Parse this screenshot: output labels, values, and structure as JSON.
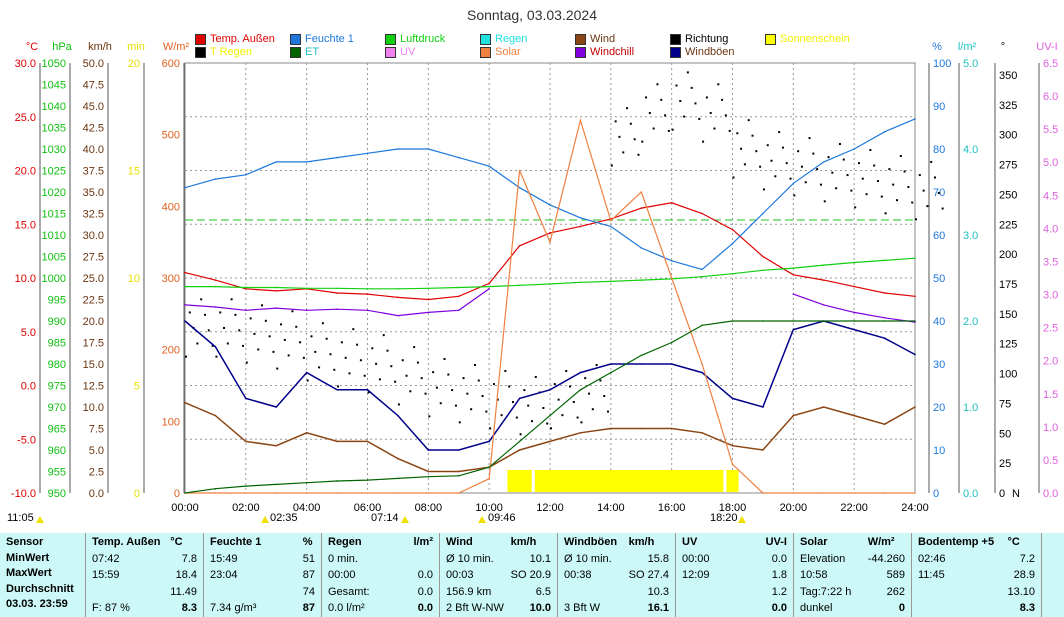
{
  "title": "Sonntag, 03.03.2024",
  "legend": [
    {
      "label": "Temp. Außen",
      "color": "#e00000",
      "text": "#e00000"
    },
    {
      "label": "Feuchte 1",
      "color": "#1e78dc",
      "text": "#1e78dc"
    },
    {
      "label": "Luftdruck",
      "color": "#10d010",
      "text": "#10d010"
    },
    {
      "label": "Regen",
      "color": "#20e0e0",
      "text": "#20e0e0"
    },
    {
      "label": "Wind",
      "color": "#8b4513",
      "text": "#6b3510"
    },
    {
      "label": "Richtung",
      "color": "#000000",
      "text": "#000000"
    },
    {
      "label": "Sonnenschein",
      "color": "#ffff00",
      "text": "#f0f000"
    },
    {
      "label": "T Regen",
      "color": "#000000",
      "text": "#f0f000"
    },
    {
      "label": "ET",
      "color": "#006400",
      "text": "#20c0c0"
    },
    {
      "label": "UV",
      "color": "#f080f0",
      "text": "#f080f0"
    },
    {
      "label": "Solar",
      "color": "#f08040",
      "text": "#f08040"
    },
    {
      "label": "Windchill",
      "color": "#8000e0",
      "text": "#c00000"
    },
    {
      "label": "Windböen",
      "color": "#00008b",
      "text": "#6b3510"
    }
  ],
  "axes": {
    "temp": {
      "unit": "°C",
      "color": "#e00000",
      "ticks": [
        "30.0",
        "25.0",
        "20.0",
        "15.0",
        "10.0",
        "5.0",
        "0.0",
        "-5.0",
        "-10.0"
      ]
    },
    "press": {
      "unit": "hPa",
      "color": "#10c010",
      "ticks": [
        "1050",
        "1045",
        "1040",
        "1035",
        "1030",
        "1025",
        "1020",
        "1015",
        "1010",
        "1005",
        "1000",
        "995",
        "990",
        "985",
        "980",
        "975",
        "970",
        "965",
        "960",
        "955",
        "950"
      ]
    },
    "wind": {
      "unit": "km/h",
      "color": "#6b3510",
      "ticks": [
        "50.0",
        "47.5",
        "45.0",
        "42.5",
        "40.0",
        "37.5",
        "35.0",
        "32.5",
        "30.0",
        "27.5",
        "25.0",
        "22.5",
        "20.0",
        "17.5",
        "15.0",
        "12.5",
        "10.0",
        "7.5",
        "5.0",
        "2.5",
        "0.0"
      ]
    },
    "min": {
      "unit": "min",
      "color": "#e8e000",
      "ticks": [
        "20",
        "15",
        "10",
        "5",
        "0"
      ]
    },
    "solar": {
      "unit": "W/m²",
      "color": "#e06020",
      "ticks": [
        "600",
        "500",
        "400",
        "300",
        "200",
        "100",
        "0"
      ]
    },
    "hum": {
      "unit": "%",
      "color": "#1e78dc",
      "ticks": [
        "100",
        "90",
        "80",
        "70",
        "60",
        "50",
        "40",
        "30",
        "20",
        "10",
        "0"
      ]
    },
    "rain": {
      "unit": "l/m²",
      "color": "#20c0c0",
      "ticks": [
        "5.0",
        "4.0",
        "3.0",
        "2.0",
        "1.0",
        "0.0"
      ]
    },
    "dir": {
      "unit": "°",
      "color": "#000",
      "ticks": [
        "350",
        "325",
        "300",
        "275",
        "250",
        "225",
        "200",
        "175",
        "150",
        "125",
        "100",
        "75",
        "50",
        "25",
        "0"
      ],
      "zero_label": "N"
    },
    "uv": {
      "unit": "UV-I",
      "color": "#e060e0",
      "ticks": [
        "6.5",
        "6.0",
        "5.5",
        "5.0",
        "4.5",
        "4.0",
        "3.5",
        "3.0",
        "2.5",
        "2.0",
        "1.5",
        "1.0",
        "0.5",
        "0.0"
      ]
    }
  },
  "markers": {
    "left": "11:05",
    "moonset": "02:35",
    "sunrise": "07:14",
    "moonrise": "09:46",
    "sunset": "18:20"
  },
  "chart_data": {
    "type": "line",
    "x_label_ticks": [
      "00:00",
      "02:00",
      "04:00",
      "06:00",
      "08:00",
      "10:00",
      "12:00",
      "14:00",
      "16:00",
      "18:00",
      "20:00",
      "22:00",
      "24:00"
    ],
    "hours": [
      0,
      1,
      2,
      3,
      4,
      5,
      6,
      7,
      8,
      9,
      10,
      11,
      12,
      13,
      14,
      15,
      16,
      17,
      18,
      19,
      20,
      21,
      22,
      23,
      24
    ],
    "series": [
      {
        "name": "Temp. Außen",
        "axis": "temp",
        "values": [
          10.5,
          9.8,
          9.0,
          8.8,
          9.0,
          8.6,
          8.5,
          8.2,
          8.0,
          8.3,
          9.5,
          13.0,
          14.2,
          14.8,
          15.5,
          16.5,
          17.0,
          16.0,
          14.5,
          12.0,
          10.3,
          9.8,
          9.2,
          8.6,
          8.3
        ]
      },
      {
        "name": "Feuchte 1",
        "axis": "hum",
        "values": [
          71,
          73,
          74,
          77,
          77,
          78,
          79,
          80,
          80,
          78,
          76,
          71,
          67,
          64,
          62,
          57,
          54,
          52,
          58,
          65,
          72,
          77,
          80,
          84,
          87
        ]
      },
      {
        "name": "Luftdruck",
        "axis": "press",
        "values": [
          998.0,
          998.0,
          997.8,
          997.8,
          997.6,
          997.6,
          997.5,
          997.5,
          997.6,
          997.8,
          998.0,
          998.3,
          998.6,
          999.0,
          999.2,
          999.5,
          999.8,
          1000.3,
          1001.0,
          1001.8,
          1002.3,
          1003.0,
          1003.6,
          1004.1,
          1004.6
        ]
      },
      {
        "name": "Wind",
        "axis": "wind",
        "values": [
          10.5,
          9,
          6,
          5.5,
          7,
          6,
          6,
          4,
          2.5,
          2.5,
          3,
          5,
          6,
          7,
          7.5,
          7.5,
          7.5,
          7,
          5.5,
          5,
          9,
          10,
          9,
          8,
          10
        ]
      },
      {
        "name": "Windböen",
        "axis": "wind",
        "values": [
          20,
          17,
          11,
          10,
          14,
          12,
          12,
          9,
          5,
          5,
          6,
          11,
          12,
          14,
          15,
          15,
          15,
          14,
          11,
          10,
          19,
          20,
          19,
          18,
          16.1
        ]
      },
      {
        "name": "Windchill",
        "axis": "temp",
        "values": [
          7.5,
          7.3,
          7.0,
          7.2,
          7.0,
          7.1,
          7.0,
          6.5,
          6.8,
          7.0,
          9.0,
          null,
          null,
          null,
          null,
          null,
          null,
          null,
          null,
          null,
          8.5,
          7.5,
          6.8,
          6.3,
          5.9
        ]
      },
      {
        "name": "Solar",
        "axis": "solar",
        "values": [
          0,
          0,
          0,
          0,
          0,
          0,
          0,
          0,
          0,
          0,
          20,
          450,
          350,
          520,
          380,
          420,
          300,
          180,
          40,
          0,
          0,
          0,
          0,
          0,
          0
        ]
      },
      {
        "name": "ET",
        "axis": "rain",
        "values": [
          0,
          0.05,
          0.08,
          0.1,
          0.12,
          0.14,
          0.15,
          0.17,
          0.19,
          0.2,
          0.3,
          0.6,
          0.9,
          1.2,
          1.4,
          1.6,
          1.75,
          1.95,
          2.0,
          2.0,
          2.0,
          2.0,
          2.0,
          2.0,
          2.0
        ]
      }
    ],
    "direction_deg": [
      140,
      140,
      135,
      130,
      120,
      115,
      110,
      100,
      90,
      85,
      80,
      75,
      80,
      85,
      300,
      320,
      330,
      320,
      290,
      280,
      275,
      270,
      265,
      260,
      255
    ],
    "sunshine_hours": [
      [
        10.6,
        11.4
      ],
      [
        11.5,
        17.7
      ],
      [
        17.8,
        18.2
      ]
    ],
    "trend_line": {
      "axis": "hum",
      "value": 63.5
    },
    "xlim": [
      0,
      24
    ]
  },
  "table": {
    "rows": [
      "Sensor",
      "MinWert",
      "MaxWert",
      "Durchschnitt",
      "03.03. 23:59"
    ],
    "cols": [
      {
        "h": "Temp. Außen",
        "u": "°C",
        "cells": [
          [
            "07:42",
            "7.8"
          ],
          [
            "15:59",
            "18.4"
          ],
          [
            "",
            "11.49"
          ],
          [
            "F: 87 %",
            "8.3"
          ]
        ]
      },
      {
        "h": "Feuchte 1",
        "u": "%",
        "cells": [
          [
            "15:49",
            "51"
          ],
          [
            "23:04",
            "87"
          ],
          [
            "",
            "74"
          ],
          [
            "7.34 g/m³",
            "87"
          ]
        ]
      },
      {
        "h": "Regen",
        "u": "l/m²",
        "cells": [
          [
            "0 min.",
            ""
          ],
          [
            "00:00",
            "0.0"
          ],
          [
            "Gesamt:",
            "0.0"
          ],
          [
            "0.0 l/m²",
            "0.0"
          ]
        ]
      },
      {
        "h": "Wind",
        "u": "km/h",
        "cells": [
          [
            "Ø 10 min.",
            "10.1"
          ],
          [
            "00:03",
            "SO 20.9"
          ],
          [
            "156.9 km",
            "6.5"
          ],
          [
            "2 Bft W-NW",
            "10.0"
          ]
        ]
      },
      {
        "h": "Windböen",
        "u": "km/h",
        "cells": [
          [
            "Ø 10 min.",
            "15.8"
          ],
          [
            "00:38",
            "SO 27.4"
          ],
          [
            "",
            "10.3"
          ],
          [
            "3 Bft W",
            "16.1"
          ]
        ]
      },
      {
        "h": "UV",
        "u": "UV-I",
        "cells": [
          [
            "00:00",
            "0.0"
          ],
          [
            "12:09",
            "1.8"
          ],
          [
            "",
            "1.2"
          ],
          [
            "",
            "0.0"
          ]
        ]
      },
      {
        "h": "Solar",
        "u": "W/m²",
        "cells": [
          [
            "Elevation",
            "-44.260"
          ],
          [
            "10:58",
            "589"
          ],
          [
            "Tag:7:22 h",
            "262"
          ],
          [
            "dunkel",
            "0"
          ]
        ]
      },
      {
        "h": "Bodentemp +5",
        "u": "°C",
        "cells": [
          [
            "02:46",
            "7.2"
          ],
          [
            "11:45",
            "28.9"
          ],
          [
            "",
            "13.10"
          ],
          [
            "",
            "8.3"
          ]
        ]
      }
    ]
  }
}
